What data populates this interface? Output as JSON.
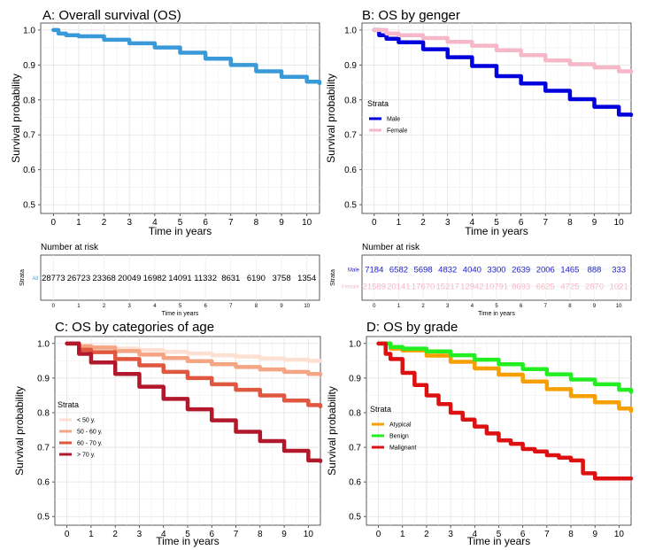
{
  "chart_data": [
    {
      "type": "line",
      "title": "A: Overall survival (OS)",
      "xlabel": "Time in years",
      "ylabel": "Survival probability",
      "xlim": [
        -0.5,
        10.5
      ],
      "ylim": [
        0.475,
        1.02
      ],
      "xticks": [
        "0",
        "1",
        "2",
        "3",
        "4",
        "5",
        "6",
        "7",
        "8",
        "9",
        "10"
      ],
      "yticks": [
        "0.5",
        "0.6",
        "0.7",
        "0.8",
        "0.9",
        "1.0"
      ],
      "legend": null,
      "series": [
        {
          "name": "All",
          "color": "#3a9ad9",
          "x": [
            0,
            0.2,
            0.5,
            1,
            2,
            3,
            4,
            5,
            6,
            7,
            8,
            9,
            10,
            10.5
          ],
          "y": [
            1.0,
            0.99,
            0.985,
            0.982,
            0.972,
            0.962,
            0.95,
            0.935,
            0.918,
            0.9,
            0.882,
            0.866,
            0.852,
            0.848
          ]
        }
      ],
      "risk_table": {
        "title": "Number at risk",
        "strata_label": "Strata",
        "rows": [
          {
            "name": "All",
            "color": "#3a9ad9",
            "values": [
              "28773",
              "26723",
              "23368",
              "20049",
              "16982",
              "14091",
              "11332",
              "8631",
              "6190",
              "3758",
              "1354"
            ]
          }
        ],
        "xticks": [
          "0",
          "1",
          "2",
          "3",
          "4",
          "5",
          "6",
          "7",
          "8",
          "9",
          "10"
        ],
        "xlabel": "Time in years"
      }
    },
    {
      "type": "line",
      "title": "B: OS by genger",
      "xlabel": "Time in years",
      "ylabel": "Survival probability",
      "xlim": [
        -0.5,
        10.5
      ],
      "ylim": [
        0.475,
        1.02
      ],
      "xticks": [
        "0",
        "1",
        "2",
        "3",
        "4",
        "5",
        "6",
        "7",
        "8",
        "9",
        "10"
      ],
      "yticks": [
        "0.5",
        "0.6",
        "0.7",
        "0.8",
        "0.9",
        "1.0"
      ],
      "legend": {
        "title": "Strata",
        "placement": "middle-left"
      },
      "series": [
        {
          "name": "Male",
          "color": "#0000dd",
          "x": [
            0,
            0.2,
            0.5,
            1,
            2,
            3,
            4,
            5,
            6,
            7,
            8,
            9,
            10,
            10.5
          ],
          "y": [
            1.0,
            0.985,
            0.975,
            0.965,
            0.945,
            0.922,
            0.897,
            0.868,
            0.847,
            0.826,
            0.802,
            0.78,
            0.758,
            0.757
          ]
        },
        {
          "name": "Female",
          "color": "#f6b8c8",
          "x": [
            0,
            0.5,
            1,
            2,
            3,
            4,
            5,
            6,
            7,
            8,
            9,
            10,
            10.5
          ],
          "y": [
            1.0,
            0.99,
            0.985,
            0.977,
            0.966,
            0.955,
            0.942,
            0.928,
            0.913,
            0.902,
            0.893,
            0.882,
            0.88
          ]
        }
      ],
      "risk_table": {
        "title": "Number at risk",
        "strata_label": "Strata",
        "rows": [
          {
            "name": "Male",
            "color": "#2222cc",
            "values": [
              "7184",
              "6582",
              "5698",
              "4832",
              "4040",
              "3300",
              "2639",
              "2006",
              "1465",
              "888",
              "333"
            ]
          },
          {
            "name": "Female",
            "color": "#f6b8c8",
            "values": [
              "21589",
              "20141",
              "17670",
              "15217",
              "12942",
              "10791",
              "8693",
              "6625",
              "4725",
              "2870",
              "1021"
            ]
          }
        ],
        "xticks": [
          "0",
          "1",
          "2",
          "3",
          "4",
          "5",
          "6",
          "7",
          "8",
          "9",
          "10"
        ],
        "xlabel": "Time in years"
      }
    },
    {
      "type": "line",
      "title": "C: OS by categories of age",
      "xlabel": "Time in years",
      "ylabel": "Survival probability",
      "xlim": [
        -0.5,
        10.5
      ],
      "ylim": [
        0.475,
        1.02
      ],
      "xticks": [
        "0",
        "1",
        "2",
        "3",
        "4",
        "5",
        "6",
        "7",
        "8",
        "9",
        "10"
      ],
      "yticks": [
        "0.5",
        "0.6",
        "0.7",
        "0.8",
        "0.9",
        "1.0"
      ],
      "legend": {
        "title": "Strata",
        "placement": "middle-left"
      },
      "series": [
        {
          "name": "< 50 y.",
          "color": "#fde0d2",
          "x": [
            0,
            0.5,
            1,
            2,
            3,
            4,
            5,
            6,
            7,
            8,
            9,
            10,
            10.5
          ],
          "y": [
            1.0,
            0.995,
            0.99,
            0.985,
            0.981,
            0.976,
            0.971,
            0.966,
            0.962,
            0.957,
            0.953,
            0.95,
            0.95
          ]
        },
        {
          "name": "50 - 60 y.",
          "color": "#f4a584",
          "x": [
            0,
            0.5,
            1,
            2,
            3,
            4,
            5,
            6,
            7,
            8,
            9,
            10,
            10.5
          ],
          "y": [
            1.0,
            0.992,
            0.988,
            0.978,
            0.968,
            0.958,
            0.949,
            0.94,
            0.932,
            0.925,
            0.918,
            0.912,
            0.91
          ]
        },
        {
          "name": "60 - 70 y.",
          "color": "#e0573f",
          "x": [
            0,
            0.5,
            1,
            2,
            3,
            4,
            5,
            6,
            7,
            8,
            9,
            10,
            10.5
          ],
          "y": [
            1.0,
            0.982,
            0.975,
            0.955,
            0.937,
            0.918,
            0.9,
            0.882,
            0.866,
            0.85,
            0.835,
            0.822,
            0.818
          ]
        },
        {
          "name": "> 70 y.",
          "color": "#b2182b",
          "x": [
            0,
            0.5,
            1,
            2,
            3,
            4,
            5,
            6,
            7,
            8,
            9,
            10,
            10.5
          ],
          "y": [
            1.0,
            0.97,
            0.945,
            0.912,
            0.875,
            0.84,
            0.81,
            0.778,
            0.745,
            0.718,
            0.69,
            0.662,
            0.66
          ]
        }
      ]
    },
    {
      "type": "line",
      "title": "D: OS by grade",
      "xlabel": "Time in years",
      "ylabel": "Survival probability",
      "xlim": [
        -0.5,
        10.5
      ],
      "ylim": [
        0.475,
        1.02
      ],
      "xticks": [
        "0",
        "1",
        "2",
        "3",
        "4",
        "5",
        "6",
        "7",
        "8",
        "9",
        "10"
      ],
      "yticks": [
        "0.5",
        "0.6",
        "0.7",
        "0.8",
        "0.9",
        "1.0"
      ],
      "legend": {
        "title": "Strata",
        "placement": "middle-left"
      },
      "series": [
        {
          "name": "Atypical",
          "color": "#f5a000",
          "x": [
            0,
            0.5,
            1,
            2,
            3,
            4,
            5,
            6,
            7,
            8,
            9,
            10,
            10.5
          ],
          "y": [
            1.0,
            0.985,
            0.98,
            0.965,
            0.947,
            0.928,
            0.91,
            0.89,
            0.868,
            0.848,
            0.83,
            0.812,
            0.805
          ]
        },
        {
          "name": "Benign",
          "color": "#22ee22",
          "x": [
            0,
            0.5,
            1,
            2,
            3,
            4,
            5,
            6,
            7,
            8,
            9,
            10,
            10.5
          ],
          "y": [
            1.0,
            0.99,
            0.985,
            0.977,
            0.966,
            0.953,
            0.94,
            0.926,
            0.911,
            0.896,
            0.882,
            0.866,
            0.86
          ]
        },
        {
          "name": "Malignant",
          "color": "#dd1111",
          "x": [
            0,
            0.3,
            0.5,
            1,
            1.5,
            2,
            2.5,
            3,
            3.5,
            4,
            4.5,
            5,
            5.5,
            6,
            6.5,
            7,
            7.5,
            8,
            8.5,
            9,
            9.5,
            10,
            10.5
          ],
          "y": [
            1.0,
            0.97,
            0.955,
            0.915,
            0.88,
            0.85,
            0.825,
            0.8,
            0.78,
            0.76,
            0.74,
            0.72,
            0.71,
            0.695,
            0.688,
            0.677,
            0.67,
            0.662,
            0.625,
            0.61,
            0.61,
            0.61,
            0.61
          ]
        }
      ]
    }
  ]
}
